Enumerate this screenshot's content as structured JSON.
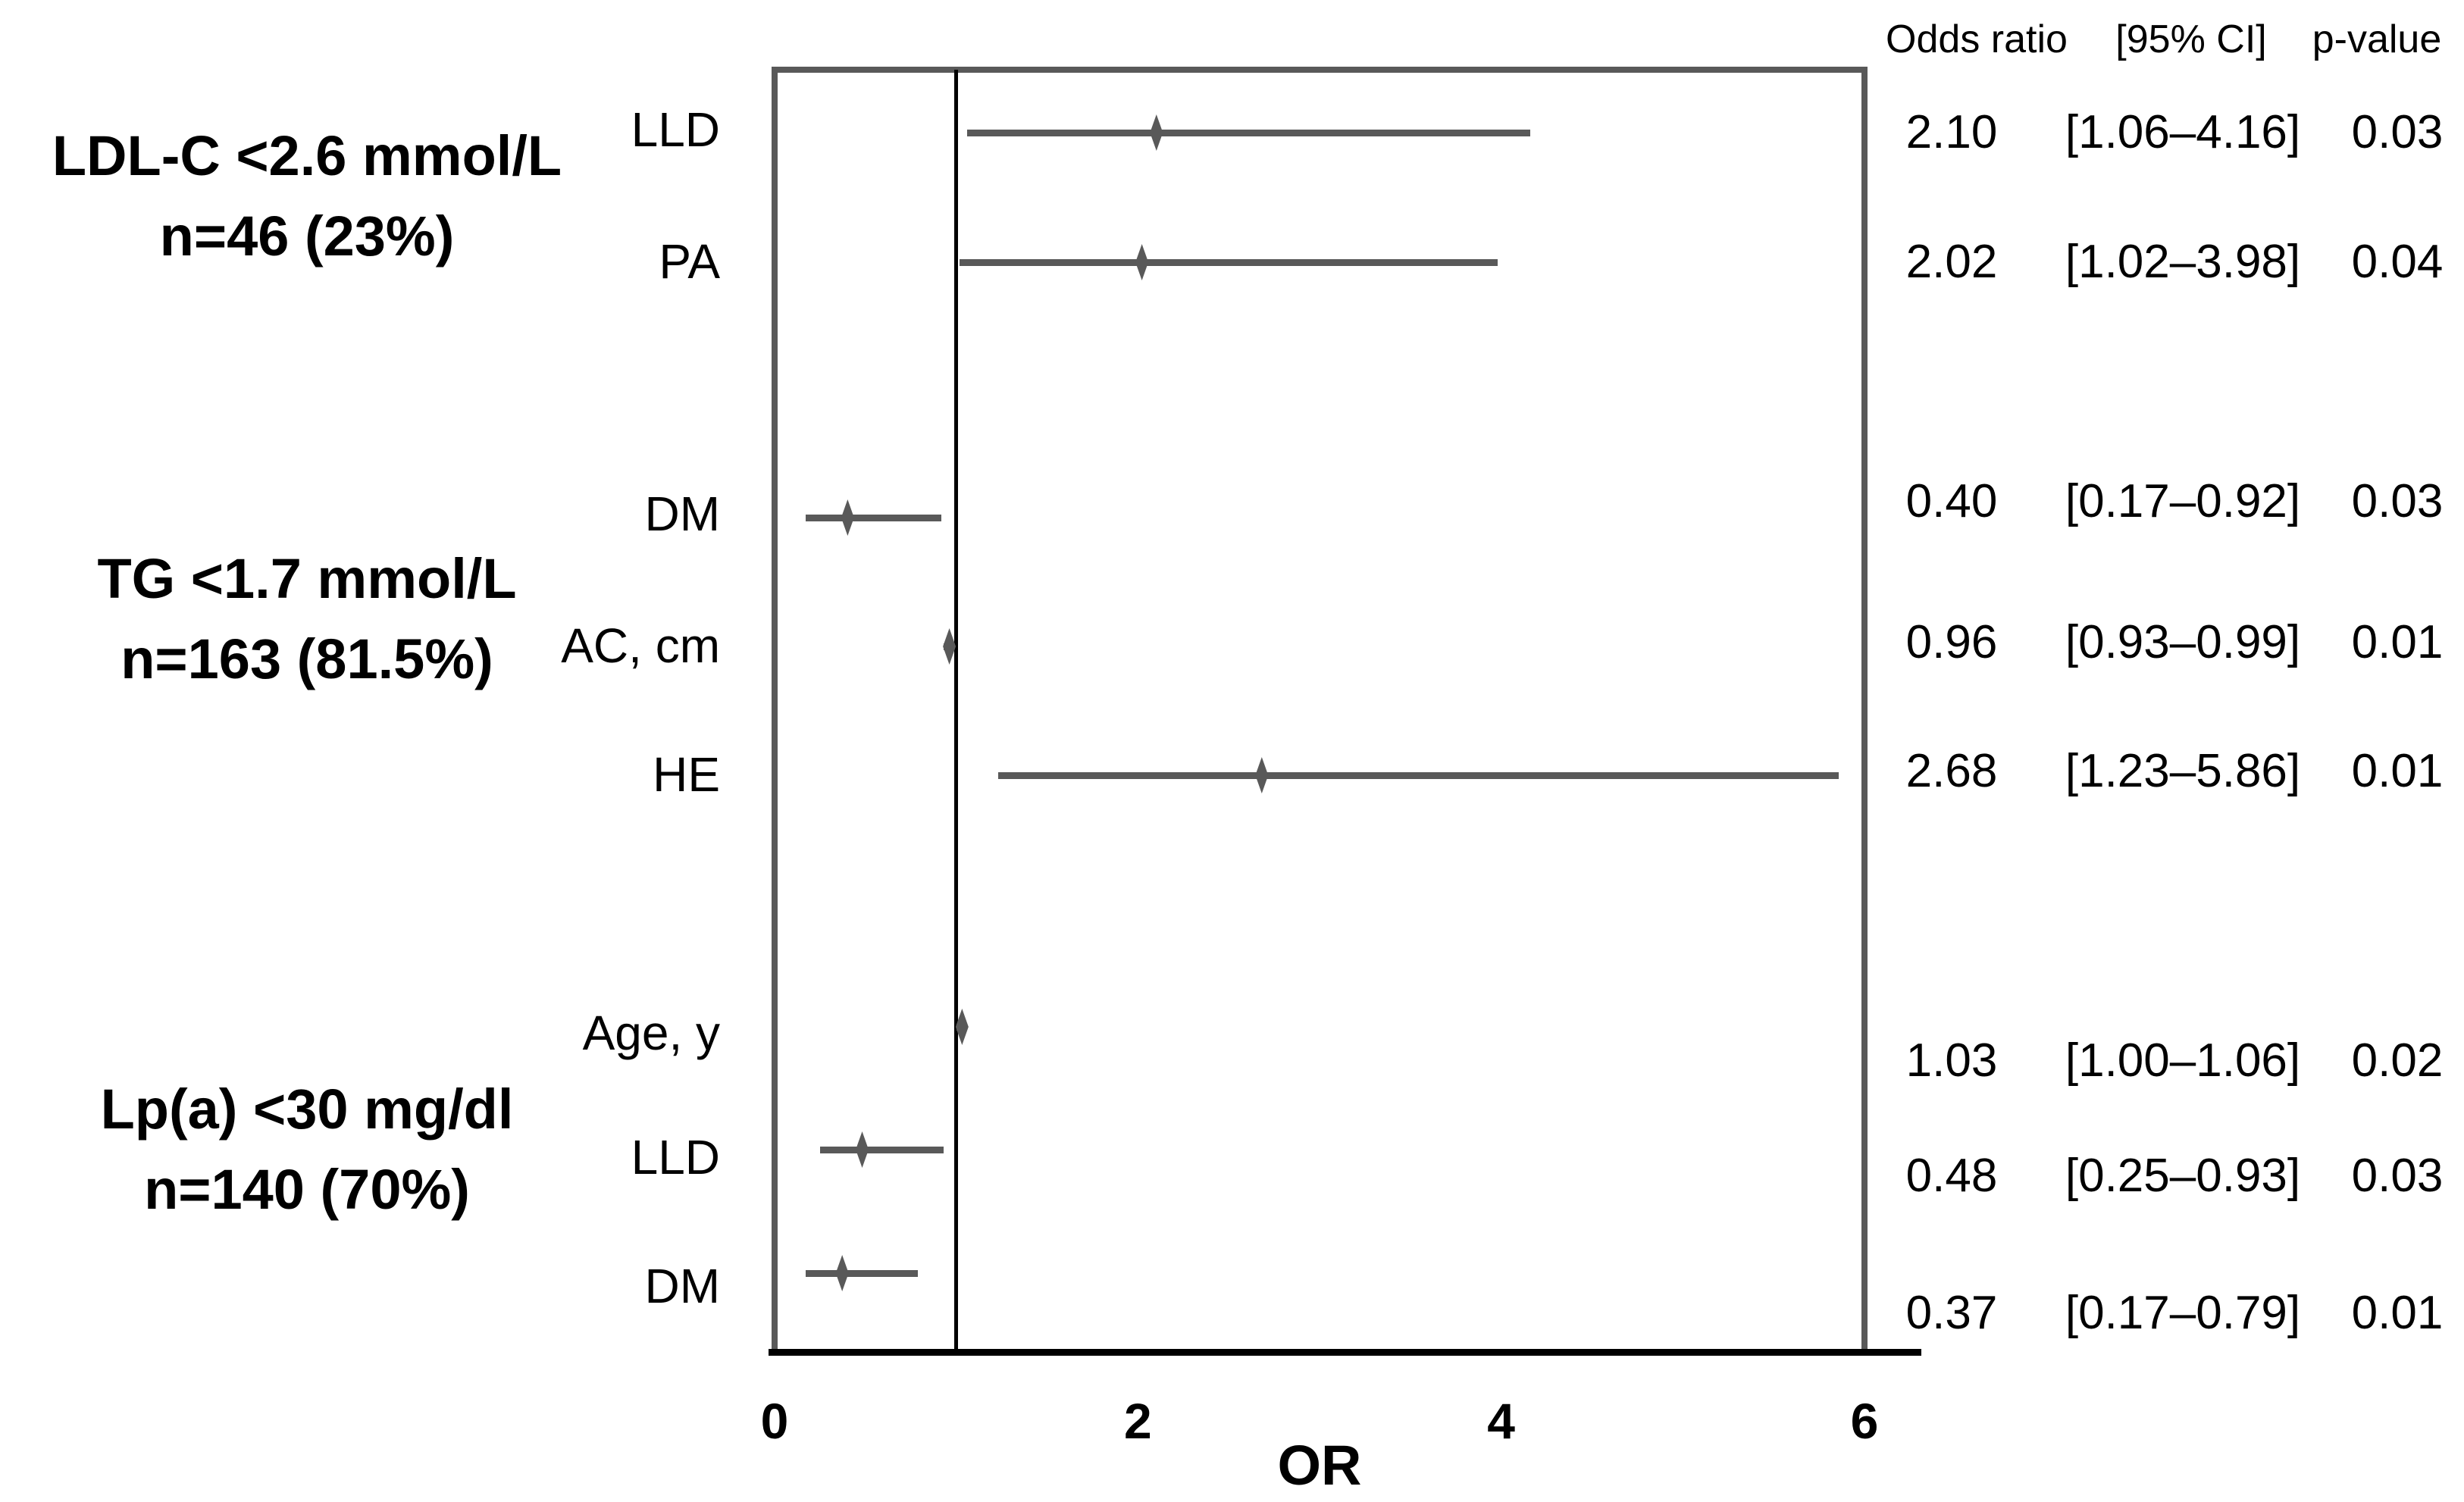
{
  "header": {
    "odds_ratio": "Odds ratio",
    "ci": "[95% CI]",
    "p_value": "p-value"
  },
  "axis": {
    "label": "OR",
    "ticks": [
      "0",
      "2",
      "4",
      "6"
    ]
  },
  "colors": {
    "marker": "#595959",
    "frame": "#595959",
    "reference_line": "#000000",
    "axis_line": "#000000",
    "text": "#000000"
  },
  "chart_data": {
    "type": "forest",
    "xlabel": "OR",
    "xlim": [
      0,
      6
    ],
    "x_ticks": [
      0,
      2,
      4,
      6
    ],
    "reference_line_x": 1,
    "columns": [
      "Odds ratio",
      "[95% CI]",
      "p-value"
    ],
    "groups": [
      {
        "label": "LDL-C <2.6 mmol/L",
        "n_label": "n=46 (23%)",
        "rows": [
          {
            "label": "LLD",
            "or": 2.1,
            "ci": [
              1.06,
              4.16
            ],
            "p": 0.03,
            "or_text": "2.10",
            "ci_text": "[1.06–4.16]",
            "p_text": "0.03"
          },
          {
            "label": "PA",
            "or": 2.02,
            "ci": [
              1.02,
              3.98
            ],
            "p": 0.04,
            "or_text": "2.02",
            "ci_text": "[1.02–3.98]",
            "p_text": "0.04"
          }
        ]
      },
      {
        "label": "TG <1.7 mmol/L",
        "n_label": "n=163 (81.5%)",
        "rows": [
          {
            "label": "DM",
            "or": 0.4,
            "ci": [
              0.17,
              0.92
            ],
            "p": 0.03,
            "or_text": "0.40",
            "ci_text": "[0.17–0.92]",
            "p_text": "0.03"
          },
          {
            "label": "AC, cm",
            "or": 0.96,
            "ci": [
              0.93,
              0.99
            ],
            "p": 0.01,
            "or_text": "0.96",
            "ci_text": "[0.93–0.99]",
            "p_text": "0.01"
          },
          {
            "label": "HE",
            "or": 2.68,
            "ci": [
              1.23,
              5.86
            ],
            "p": 0.01,
            "or_text": "2.68",
            "ci_text": "[1.23–5.86]",
            "p_text": "0.01"
          }
        ]
      },
      {
        "label": "Lp(a) <30 mg/dl",
        "n_label": "n=140 (70%)",
        "rows": [
          {
            "label": "Age, y",
            "or": 1.03,
            "ci": [
              1.0,
              1.06
            ],
            "p": 0.02,
            "or_text": "1.03",
            "ci_text": "[1.00–1.06]",
            "p_text": "0.02"
          },
          {
            "label": "LLD",
            "or": 0.48,
            "ci": [
              0.25,
              0.93
            ],
            "p": 0.03,
            "or_text": "0.48",
            "ci_text": "[0.25–0.93]",
            "p_text": "0.03"
          },
          {
            "label": "DM",
            "or": 0.37,
            "ci": [
              0.17,
              0.79
            ],
            "p": 0.01,
            "or_text": "0.37",
            "ci_text": "[0.17–0.79]",
            "p_text": "0.01"
          }
        ]
      }
    ]
  }
}
